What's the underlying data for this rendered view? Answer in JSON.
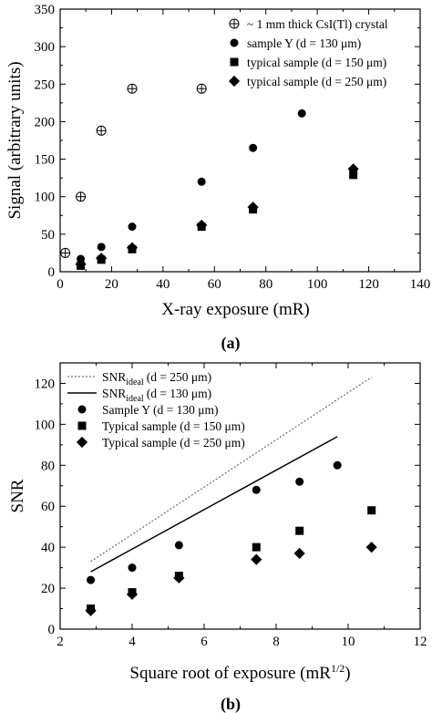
{
  "chart_data": [
    {
      "type": "scatter",
      "panel_label": "(a)",
      "xlabel": "X-ray exposure (mR)",
      "ylabel": "Signal (arbitrary units)",
      "xlim": [
        0,
        140
      ],
      "ylim": [
        0,
        350
      ],
      "xticks": [
        "0",
        "20",
        "40",
        "60",
        "80",
        "100",
        "120",
        "140"
      ],
      "yticks": [
        "0",
        "50",
        "100",
        "150",
        "200",
        "250",
        "300",
        "350"
      ],
      "legend_position": "top-right",
      "grid": false,
      "series": [
        {
          "name": "~ 1 mm thick CsI(Tl) crystal",
          "marker": "circle-plus",
          "x": [
            2,
            8,
            16,
            28,
            55
          ],
          "y": [
            25,
            100,
            188,
            244,
            244
          ]
        },
        {
          "name": "sample Y (d = 130 μm)",
          "marker": "circle",
          "x": [
            8,
            16,
            28,
            55,
            75,
            94
          ],
          "y": [
            17,
            33,
            60,
            120,
            165,
            211
          ]
        },
        {
          "name": "typical sample (d = 150 μm)",
          "marker": "square",
          "x": [
            8,
            16,
            28,
            55,
            75,
            114
          ],
          "y": [
            8,
            16,
            30,
            60,
            83,
            129
          ]
        },
        {
          "name": "typical sample (d = 250 μm)",
          "marker": "diamond",
          "x": [
            8,
            16,
            28,
            55,
            75,
            114
          ],
          "y": [
            10,
            18,
            32,
            62,
            86,
            137
          ]
        }
      ]
    },
    {
      "type": "scatter",
      "panel_label": "(b)",
      "xlabel_main": "Square root of exposure (mR",
      "xlabel_sup": "1/2",
      "xlabel_end": ")",
      "ylabel": "SNR",
      "xlim": [
        2,
        12
      ],
      "ylim": [
        0,
        130
      ],
      "xticks": [
        "2",
        "4",
        "6",
        "8",
        "10",
        "12"
      ],
      "yticks": [
        "0",
        "20",
        "40",
        "60",
        "80",
        "100",
        "120"
      ],
      "legend_position": "top-left",
      "grid": false,
      "lines": [
        {
          "label_main": "SNR",
          "label_sub": "ideal",
          "label_rest": "(d = 250 μm)",
          "style": "dotted",
          "x": [
            2.85,
            10.65
          ],
          "y": [
            33,
            123
          ]
        },
        {
          "label_main": "SNR",
          "label_sub": "ideal",
          "label_rest": "(d = 130 μm)",
          "style": "solid",
          "x": [
            2.85,
            9.7
          ],
          "y": [
            28,
            94
          ]
        }
      ],
      "series": [
        {
          "name": "Sample Y (d = 130 μm)",
          "marker": "circle",
          "x": [
            2.85,
            4.0,
            5.3,
            7.45,
            8.65,
            9.7
          ],
          "y": [
            24,
            30,
            41,
            68,
            72,
            80
          ]
        },
        {
          "name": "Typical sample (d = 150 μm)",
          "marker": "square",
          "x": [
            2.85,
            4.0,
            5.3,
            7.45,
            8.65,
            10.65
          ],
          "y": [
            10,
            18,
            26,
            40,
            48,
            58
          ]
        },
        {
          "name": "Typical sample (d = 250 μm)",
          "marker": "diamond",
          "x": [
            2.85,
            4.0,
            5.3,
            7.45,
            8.65,
            10.65
          ],
          "y": [
            9,
            17,
            25,
            34,
            37,
            40
          ]
        }
      ]
    }
  ]
}
